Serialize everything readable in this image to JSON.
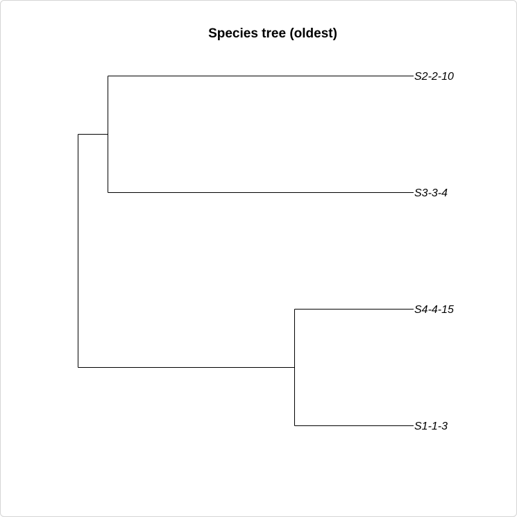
{
  "title": "Species tree (oldest)",
  "tree": {
    "tips": [
      {
        "label": "S2-2-10"
      },
      {
        "label": "S3-3-4"
      },
      {
        "label": "S4-4-15"
      },
      {
        "label": "S1-1-3"
      }
    ],
    "topology": "((S2-2-10,S3-3-4),(S4-4-15,S1-1-3))"
  },
  "colors": {
    "background": "#ffffff",
    "branches": "#000000",
    "frame_border": "#d4d4d4"
  }
}
